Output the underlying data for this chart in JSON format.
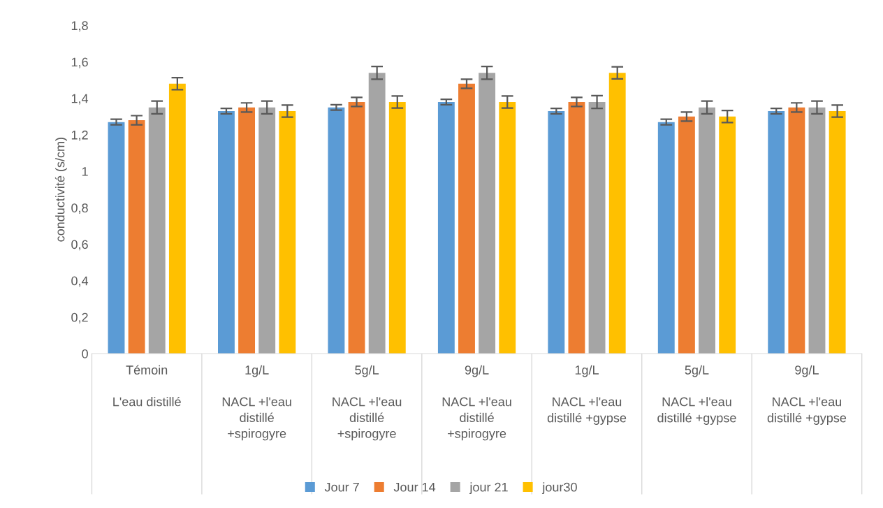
{
  "chart_data": {
    "type": "bar",
    "ylabel": "conductivité (s/cm)",
    "categories": [
      "Témoin\n\nL'eau distillé",
      "1g/L\n\nNACL +l'eau\ndistillé\n+spirogyre",
      "5g/L\n\nNACL +l'eau\ndistillé\n+spirogyre",
      "9g/L\n\nNACL +l'eau\ndistillé\n+spirogyre",
      "1g/L\n\nNACL +l'eau\ndistillé +gypse",
      "5g/L\n\nNACL +l'eau\ndistillé +gypse",
      "9g/L\n\nNACL +l'eau\ndistillé +gypse"
    ],
    "series": [
      {
        "name": "Jour 7",
        "color": "#5b9bd5",
        "values": [
          1.27,
          1.33,
          1.35,
          1.38,
          1.33,
          1.27,
          1.33
        ],
        "errors": [
          0.015,
          0.015,
          0.015,
          0.015,
          0.015,
          0.015,
          0.015
        ]
      },
      {
        "name": "Jour 14",
        "color": "#ed7d31",
        "values": [
          1.28,
          1.35,
          1.38,
          1.48,
          1.38,
          1.3,
          1.35
        ],
        "errors": [
          0.025,
          0.025,
          0.025,
          0.025,
          0.025,
          0.025,
          0.025
        ]
      },
      {
        "name": "jour 21",
        "color": "#a5a5a5",
        "values": [
          1.35,
          1.35,
          1.54,
          1.54,
          1.38,
          1.35,
          1.35
        ],
        "errors": [
          0.035,
          0.035,
          0.035,
          0.035,
          0.035,
          0.035,
          0.035
        ]
      },
      {
        "name": "jour30",
        "color": "#ffc000",
        "values": [
          1.48,
          1.33,
          1.38,
          1.38,
          1.54,
          1.3,
          1.33
        ],
        "errors": [
          0.033,
          0.033,
          0.033,
          0.033,
          0.033,
          0.033,
          0.033
        ]
      }
    ],
    "ylim": [
      0,
      1.8
    ],
    "yticks": [
      0,
      {
        "value": 0.2,
        "label": "0,2"
      },
      {
        "value": 0.4,
        "label": "0,4"
      },
      {
        "value": 0.6,
        "label": "0,6"
      },
      {
        "value": 0.8,
        "label": "0,8"
      },
      1,
      {
        "value": 1.2,
        "label": "1,2"
      },
      {
        "value": 1.4,
        "label": "1,4"
      },
      {
        "value": 1.6,
        "label": "1,6"
      },
      {
        "value": 1.8,
        "label": "1,8"
      }
    ],
    "grid": false,
    "legend": "bottom"
  }
}
